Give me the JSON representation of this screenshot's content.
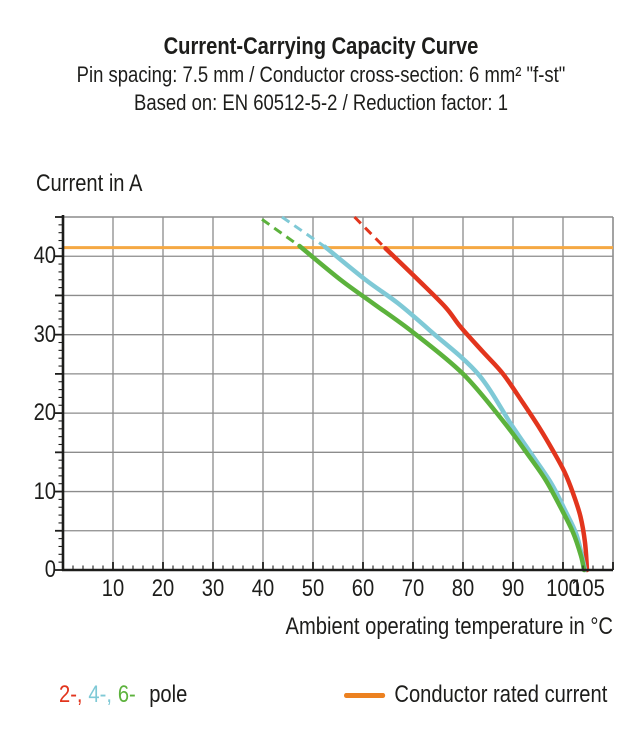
{
  "header": {
    "title": "Current-Carrying Capacity Curve",
    "subtitle1": "Pin spacing: 7.5 mm / Conductor cross-section: 6 mm² \"f-st\"",
    "subtitle2": "Based on: EN 60512-5-2 / Reduction factor: 1"
  },
  "legend": {
    "pole_2": "2-,",
    "pole_4": "4-,",
    "pole_6": "6-",
    "pole_word": "pole",
    "rated": "Conductor rated current"
  },
  "colors": {
    "text": "#1d1d1b",
    "axis": "#1d1d1b",
    "grid": "#8c8c8c",
    "frame": "#8c8c8c",
    "red_2pole": "#e2351d",
    "cyan_4pole": "#7fc9d6",
    "green_6pole": "#5cb23c",
    "orange_rated_line": "#f5a843",
    "orange_legend_swatch": "#ec8120"
  },
  "chart_data": {
    "type": "line",
    "title": "Current-Carrying Capacity Curve",
    "xlabel": "Ambient operating temperature in °C",
    "ylabel": "Current in A",
    "xlim": [
      0,
      110
    ],
    "ylim": [
      0,
      45
    ],
    "grid": {
      "x_step": 10,
      "y_step": 5
    },
    "x_tick_labels": [
      10,
      20,
      30,
      40,
      50,
      60,
      70,
      80,
      90,
      100,
      105
    ],
    "y_tick_labels": [
      0,
      10,
      20,
      30,
      40
    ],
    "x_minor_tick_step": 2,
    "x_major_tick_step": 10,
    "y_minor_tick_step": 1,
    "y_major_tick_step": 5,
    "rated_current": 41,
    "series": [
      {
        "name": "Conductor rated current",
        "style": "hline",
        "color": "#f5a843",
        "y": 41.1
      },
      {
        "name": "2-pole",
        "style": "curve",
        "color": "#e2351d",
        "dashed_points": [
          [
            58.3,
            45
          ],
          [
            64.5,
            41
          ]
        ],
        "points": [
          [
            64.5,
            41
          ],
          [
            71,
            37
          ],
          [
            76.5,
            33.5
          ],
          [
            79.5,
            31
          ],
          [
            84,
            27.8
          ],
          [
            88,
            25
          ],
          [
            92,
            21.3
          ],
          [
            95.4,
            18
          ],
          [
            98,
            15.2
          ],
          [
            100.3,
            12.5
          ],
          [
            102,
            9.8
          ],
          [
            103.5,
            6.8
          ],
          [
            104.4,
            3.5
          ],
          [
            104.8,
            0
          ]
        ]
      },
      {
        "name": "4-pole",
        "style": "curve",
        "color": "#7fc9d6",
        "dashed_points": [
          [
            43.8,
            45
          ],
          [
            52.4,
            41.2
          ]
        ],
        "points": [
          [
            52.4,
            41.2
          ],
          [
            60.5,
            37
          ],
          [
            67,
            34
          ],
          [
            73.8,
            30.3
          ],
          [
            83,
            25
          ],
          [
            89.7,
            18.5
          ],
          [
            94,
            14.5
          ],
          [
            97.7,
            11
          ],
          [
            100.5,
            7.5
          ],
          [
            102.7,
            4.5
          ],
          [
            104,
            1.2
          ],
          [
            104.4,
            0
          ]
        ]
      },
      {
        "name": "6-pole",
        "style": "curve",
        "color": "#5cb23c",
        "dashed_points": [
          [
            39.8,
            44.7
          ],
          [
            47.3,
            41.3
          ]
        ],
        "points": [
          [
            47.3,
            41.3
          ],
          [
            55.5,
            37
          ],
          [
            62,
            34
          ],
          [
            70,
            30.3
          ],
          [
            80,
            25
          ],
          [
            88,
            19
          ],
          [
            93,
            14.7
          ],
          [
            96.5,
            11.5
          ],
          [
            99.5,
            8
          ],
          [
            102,
            4.8
          ],
          [
            103.6,
            1.8
          ],
          [
            104.2,
            0
          ]
        ]
      }
    ]
  }
}
